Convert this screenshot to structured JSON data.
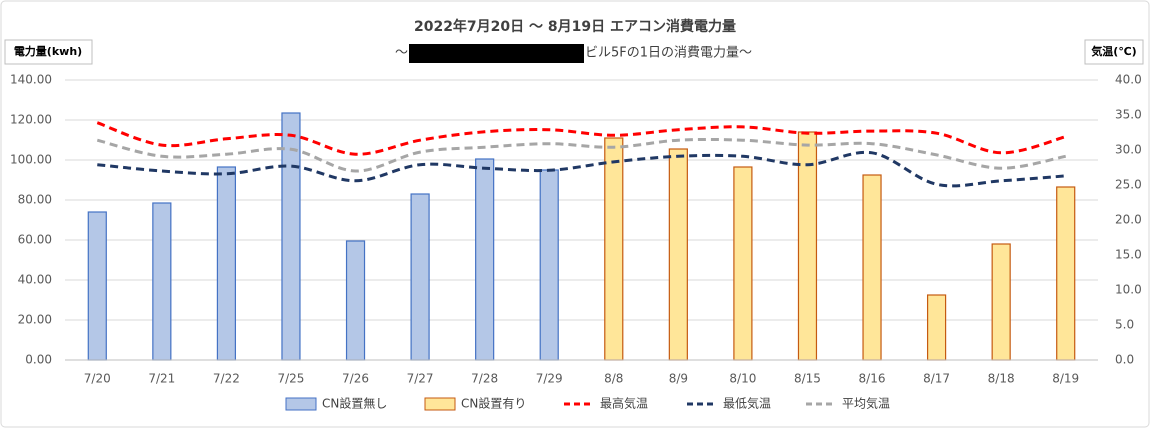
{
  "chart_data": {
    "type": "bar_line",
    "title": "2022年7月20日 ～ 8月19日 エアコン消費電力量",
    "subtitle": [
      "～",
      "ビル5Fの1日の消費電力量～"
    ],
    "ylabel": "電力量(kwh)",
    "y2label": "気温(℃)",
    "categories": [
      "7/20",
      "7/21",
      "7/22",
      "7/25",
      "7/26",
      "7/27",
      "7/28",
      "7/29",
      "8/8",
      "8/9",
      "8/10",
      "8/15",
      "8/16",
      "8/17",
      "8/18",
      "8/19"
    ],
    "series": [
      {
        "name": "CN設置無し",
        "kind": "bar",
        "color": "#b4c7e7",
        "edge": "#4472c4",
        "values": [
          74,
          78.5,
          96.5,
          123.5,
          59.5,
          83,
          100.5,
          95,
          null,
          null,
          null,
          null,
          null,
          null,
          null,
          null
        ]
      },
      {
        "name": "CN設置有り",
        "kind": "bar",
        "color": "#ffe699",
        "edge": "#c55a11",
        "values": [
          null,
          null,
          null,
          null,
          null,
          null,
          null,
          null,
          111,
          105.5,
          96.5,
          114,
          92.5,
          32.5,
          58,
          86.5
        ]
      },
      {
        "name": "最高気温",
        "kind": "line",
        "axis": "y2",
        "color": "#ff0000",
        "values": [
          33.9,
          30.7,
          31.6,
          32.1,
          29.4,
          31.4,
          32.6,
          32.9,
          32.1,
          32.9,
          33.3,
          32.4,
          32.7,
          32.4,
          29.6,
          31.9
        ]
      },
      {
        "name": "最低気温",
        "kind": "line",
        "axis": "y2",
        "color": "#203864",
        "values": [
          27.9,
          27.0,
          26.6,
          27.7,
          25.6,
          27.9,
          27.4,
          27.1,
          28.3,
          29.1,
          29.1,
          27.9,
          29.6,
          25.1,
          25.6,
          26.3
        ]
      },
      {
        "name": "平均気温",
        "kind": "line",
        "axis": "y2",
        "color": "#a6a6a6",
        "values": [
          31.4,
          29.1,
          29.4,
          30.1,
          27.0,
          29.7,
          30.4,
          30.9,
          30.4,
          31.4,
          31.4,
          30.7,
          30.9,
          29.3,
          27.4,
          29.1
        ]
      }
    ],
    "ylim": [
      0,
      140
    ],
    "yticks": [
      {
        "value": 0,
        "label": "0.00"
      },
      {
        "value": 20,
        "label": "20.00"
      },
      {
        "value": 40,
        "label": "40.00"
      },
      {
        "value": 60,
        "label": "60.00"
      },
      {
        "value": 80,
        "label": "80.00"
      },
      {
        "value": 100,
        "label": "100.00"
      },
      {
        "value": 120,
        "label": "120.00"
      },
      {
        "value": 140,
        "label": "140.00"
      }
    ],
    "y2lim": [
      0,
      40
    ],
    "y2ticks": [
      {
        "value": 0,
        "label": "0.0"
      },
      {
        "value": 5,
        "label": "5.0"
      },
      {
        "value": 10,
        "label": "10.0"
      },
      {
        "value": 15,
        "label": "15.0"
      },
      {
        "value": 20,
        "label": "20.0"
      },
      {
        "value": 25,
        "label": "25.0"
      },
      {
        "value": 30,
        "label": "30.0"
      },
      {
        "value": 35,
        "label": "35.0"
      },
      {
        "value": 40,
        "label": "40.0"
      }
    ],
    "grid": true,
    "legend": "bottom"
  }
}
